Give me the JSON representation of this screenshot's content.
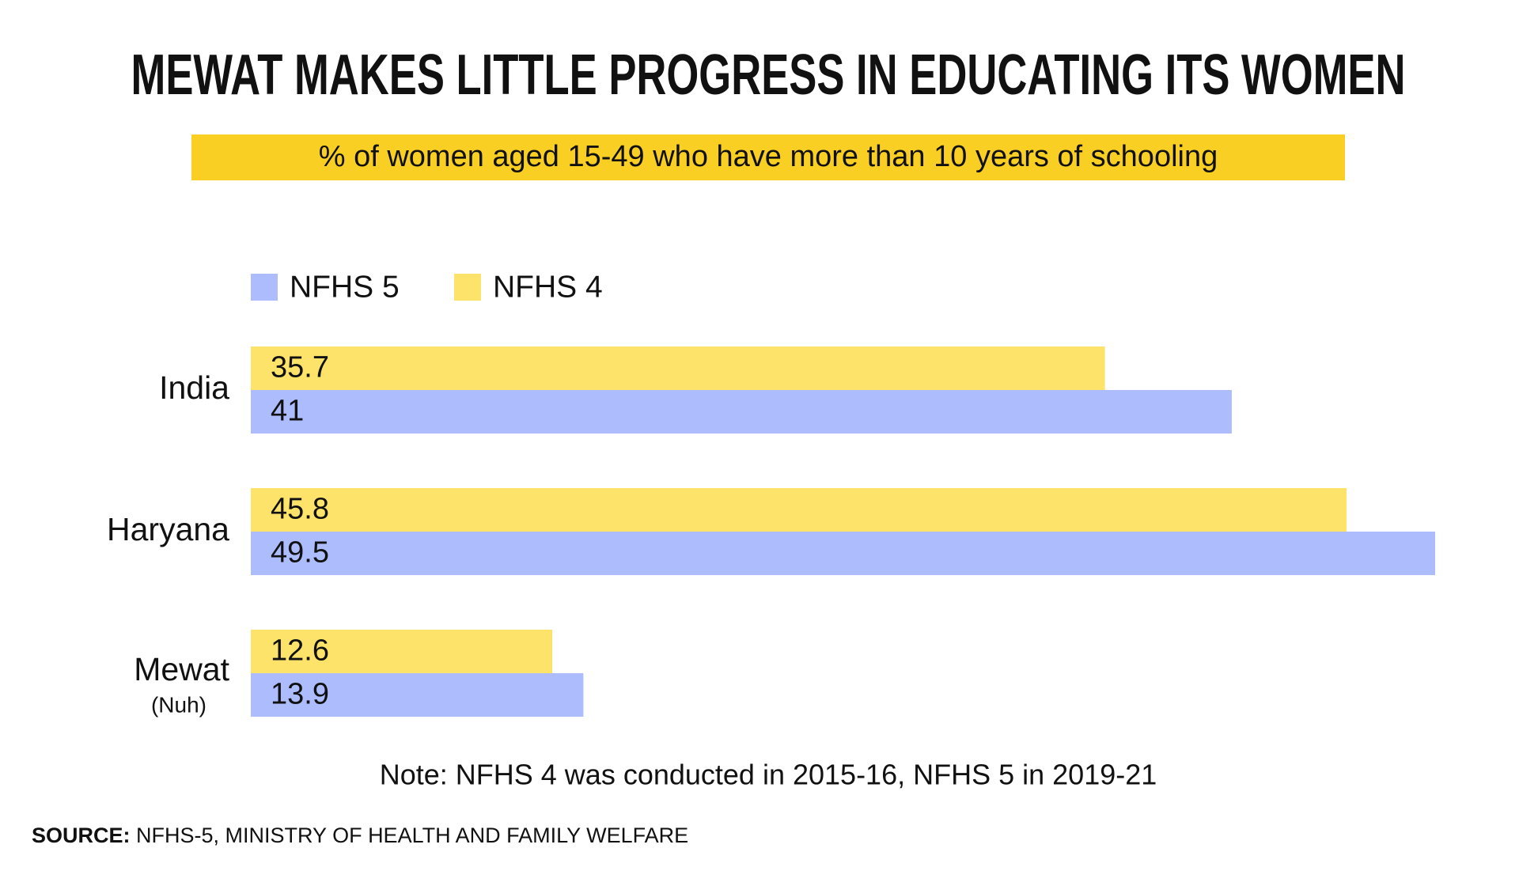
{
  "chart_data": {
    "type": "bar",
    "orientation": "horizontal",
    "title": "MEWAT MAKES LITTLE PROGRESS IN EDUCATING ITS WOMEN",
    "subtitle": "% of women aged 15-49 who have more than 10 years of schooling",
    "categories": [
      "India",
      "Haryana",
      "Mewat"
    ],
    "category_notes": [
      null,
      null,
      "(Nuh)"
    ],
    "series": [
      {
        "name": "NFHS 5",
        "color": "#adbcfc",
        "values": [
          41,
          49.5,
          13.9
        ]
      },
      {
        "name": "NFHS 4",
        "color": "#fde36a",
        "values": [
          35.7,
          45.8,
          12.6
        ]
      }
    ],
    "note": "Note: NFHS 4 was conducted in 2015-16, NFHS 5 in 2019-21",
    "source_label": "SOURCE:",
    "source": "NFHS-5, MINISTRY OF HEALTH AND FAMILY WELFARE",
    "subtitle_color": "#f9cf24"
  }
}
